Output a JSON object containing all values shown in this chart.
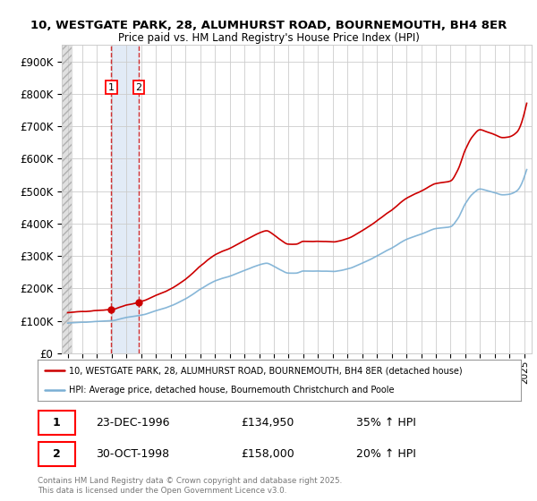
{
  "title_line1": "10, WESTGATE PARK, 28, ALUMHURST ROAD, BOURNEMOUTH, BH4 8ER",
  "title_line2": "Price paid vs. HM Land Registry's House Price Index (HPI)",
  "ylim": [
    0,
    950000
  ],
  "yticks": [
    0,
    100000,
    200000,
    300000,
    400000,
    500000,
    600000,
    700000,
    800000,
    900000
  ],
  "ytick_labels": [
    "£0",
    "£100K",
    "£200K",
    "£300K",
    "£400K",
    "£500K",
    "£600K",
    "£700K",
    "£800K",
    "£900K"
  ],
  "sale1_date": "23-DEC-1996",
  "sale1_price": 134950,
  "sale1_pct": "35% ↑ HPI",
  "sale2_date": "30-OCT-1998",
  "sale2_price": 158000,
  "sale2_pct": "20% ↑ HPI",
  "sale1_x": 1996.97,
  "sale2_x": 1998.83,
  "legend_line1": "10, WESTGATE PARK, 28, ALUMHURST ROAD, BOURNEMOUTH, BH4 8ER (detached house)",
  "legend_line2": "HPI: Average price, detached house, Bournemouth Christchurch and Poole",
  "footer": "Contains HM Land Registry data © Crown copyright and database right 2025.\nThis data is licensed under the Open Government Licence v3.0.",
  "hpi_color": "#7aafd4",
  "price_color": "#cc0000",
  "grid_color": "#cccccc",
  "background_color": "#ffffff",
  "hatched_region_color": "#dde8f5"
}
